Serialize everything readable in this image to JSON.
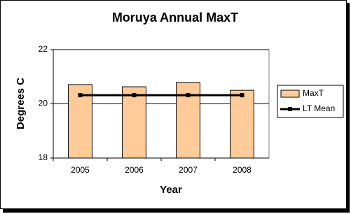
{
  "chart_data": {
    "type": "bar",
    "title": "Moruya Annual MaxT",
    "x_label": "Year",
    "y_label": "Degrees C",
    "categories": [
      "2005",
      "2006",
      "2007",
      "2008"
    ],
    "series": [
      {
        "name": "MaxT",
        "type": "bar",
        "color": "#ffcc99",
        "values": [
          20.71,
          20.63,
          20.79,
          20.5
        ]
      },
      {
        "name": "LT Mean",
        "type": "line",
        "color": "#000000",
        "values": [
          20.32,
          20.32,
          20.32,
          20.32
        ]
      }
    ],
    "ylim": [
      18,
      22
    ],
    "yticks": [
      18,
      20,
      22
    ],
    "grid": true,
    "legend": "right"
  }
}
